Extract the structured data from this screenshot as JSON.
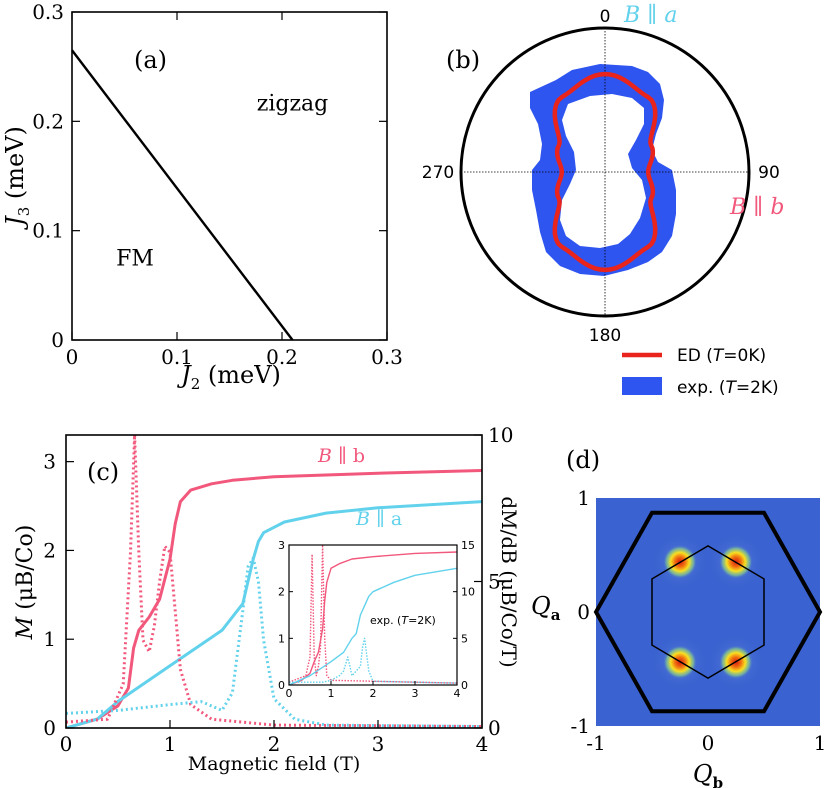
{
  "colors": {
    "pink": "#f2577c",
    "cyan": "#62d2ec",
    "red": "#e8241c",
    "blue": "#2f55f0",
    "map_bg": "#3a62d0"
  },
  "chart_data": [
    {
      "type": "line",
      "panel": "(a)",
      "title": "",
      "xlabel_var": "J",
      "xlabel_sub": "2",
      "xlabel_unit": " (meV)",
      "ylabel_var": "J",
      "ylabel_sub": "3",
      "ylabel_unit": " (meV)",
      "xlim": [
        0,
        0.3
      ],
      "ylim": [
        0,
        0.3
      ],
      "xticks": [
        "0",
        "0.1",
        "0.2",
        "0.3"
      ],
      "yticks": [
        "0",
        "0.1",
        "0.2",
        "0.3"
      ],
      "x": [
        0,
        0.21
      ],
      "y": [
        0.265,
        0
      ],
      "region_labels": [
        {
          "text": "zigzag",
          "x": 0.21,
          "y": 0.21
        },
        {
          "text": "FM",
          "x": 0.06,
          "y": 0.068
        }
      ]
    },
    {
      "type": "polar",
      "panel": "(b)",
      "angle_labels": [
        "0",
        "90",
        "180",
        "270"
      ],
      "axis_label_a": "B ∥ a",
      "axis_label_b": "B ∥ b",
      "legend": [
        {
          "label": "ED (T=0K)",
          "text_before": "ED (",
          "var": "T",
          "text_after": "=0K)"
        },
        {
          "label": "exp. (T=2K)",
          "text_before": "exp. (",
          "var": "T",
          "text_after": "=2K)"
        }
      ],
      "ed_radius_deg": [
        0,
        30,
        60,
        90,
        120,
        150,
        180
      ],
      "ed_radius_vals": [
        0.68,
        0.6,
        0.37,
        0.3,
        0.37,
        0.6,
        0.68
      ]
    },
    {
      "type": "line",
      "panel": "(c)",
      "xlabel": "Magnetic field (T)",
      "ylabel_left_var": "M",
      "ylabel_left_unit": " (μB/Co)",
      "ylabel_right": "dM/dB (μB/Co/T)",
      "xlim": [
        0,
        4
      ],
      "ylim_left": [
        0,
        3.3
      ],
      "ylim_right": [
        0,
        10
      ],
      "xticks": [
        "0",
        "1",
        "2",
        "3",
        "4"
      ],
      "yticks_left": [
        "0",
        "1",
        "2",
        "3"
      ],
      "yticks_right": [
        "0",
        "5",
        "10"
      ],
      "series": [
        {
          "name": "B ∥ b",
          "axis": "M",
          "x": [
            0,
            0.3,
            0.5,
            0.6,
            0.65,
            0.7,
            0.8,
            0.9,
            1.0,
            1.05,
            1.1,
            1.2,
            1.4,
            1.6,
            2.0,
            3.0,
            4.0
          ],
          "y": [
            0,
            0.1,
            0.25,
            0.45,
            0.9,
            1.1,
            1.25,
            1.45,
            1.9,
            2.3,
            2.55,
            2.68,
            2.75,
            2.79,
            2.83,
            2.87,
            2.9
          ]
        },
        {
          "name": "B ∥ a",
          "axis": "M",
          "x": [
            0,
            0.3,
            0.5,
            1.0,
            1.5,
            1.7,
            1.8,
            1.85,
            1.9,
            2.1,
            2.5,
            3.0,
            4.0
          ],
          "y": [
            0,
            0.1,
            0.3,
            0.7,
            1.1,
            1.4,
            1.9,
            2.1,
            2.2,
            2.32,
            2.42,
            2.48,
            2.55
          ]
        },
        {
          "name": "dM/dB B ∥ b",
          "axis": "dMdB",
          "x": [
            0,
            0.4,
            0.55,
            0.62,
            0.66,
            0.7,
            0.74,
            0.8,
            0.85,
            0.9,
            0.95,
            1.0,
            1.05,
            1.1,
            1.2,
            1.4,
            2.0,
            4.0
          ],
          "y": [
            0.2,
            0.3,
            1.5,
            6,
            10,
            6,
            3,
            2.6,
            3.5,
            5,
            6.2,
            6.0,
            4,
            2,
            0.8,
            0.3,
            0.1,
            0.05
          ]
        },
        {
          "name": "dM/dB B ∥ a",
          "axis": "dMdB",
          "x": [
            0,
            0.5,
            1.0,
            1.3,
            1.5,
            1.6,
            1.7,
            1.75,
            1.8,
            1.85,
            1.9,
            2.0,
            2.2,
            2.5,
            4.0
          ],
          "y": [
            0.5,
            0.6,
            0.8,
            0.9,
            0.6,
            1.2,
            4,
            5.5,
            5.8,
            5,
            3,
            1,
            0.3,
            0.1,
            0.05
          ]
        }
      ],
      "labels": {
        "b_var": "B",
        "b_text": " ∥ b",
        "a_var": "B",
        "a_text": " ∥ a"
      },
      "inset": {
        "xlim": [
          0,
          4
        ],
        "ylim_left": [
          0,
          3
        ],
        "ylim_right": [
          0,
          15
        ],
        "xticks": [
          "0",
          "1",
          "2",
          "3",
          "4"
        ],
        "yticks_left": [
          "0",
          "1",
          "2",
          "3"
        ],
        "yticks_right": [
          "0",
          "5",
          "10",
          "15"
        ],
        "label_before": "exp. (",
        "label_var": "T",
        "label_after": "=2K)",
        "series": [
          {
            "name": "exp B ∥ b",
            "axis": "M",
            "x": [
              0,
              0.3,
              0.5,
              0.6,
              0.7,
              0.8,
              0.85,
              0.9,
              1.0,
              1.2,
              1.5,
              2.0,
              3.0,
              4.0
            ],
            "y": [
              0,
              0.1,
              0.25,
              0.5,
              0.7,
              1.2,
              1.8,
              2.2,
              2.5,
              2.6,
              2.7,
              2.75,
              2.82,
              2.85
            ]
          },
          {
            "name": "exp B ∥ a",
            "axis": "M",
            "x": [
              0,
              0.5,
              1.0,
              1.3,
              1.5,
              1.6,
              1.7,
              1.8,
              1.9,
              2.0,
              2.5,
              3.0,
              4.0
            ],
            "y": [
              0,
              0.2,
              0.5,
              0.7,
              1.0,
              1.1,
              1.5,
              1.7,
              1.9,
              2.0,
              2.2,
              2.35,
              2.5
            ]
          },
          {
            "name": "exp dM/dB B ∥ b",
            "axis": "dMdB",
            "x": [
              0,
              0.4,
              0.5,
              0.55,
              0.6,
              0.65,
              0.7,
              0.75,
              0.8,
              0.85,
              0.9,
              1.0,
              4.0
            ],
            "y": [
              0.3,
              1,
              3,
              14,
              3,
              1,
              2,
              4,
              15,
              5,
              1,
              0.5,
              0.2
            ]
          },
          {
            "name": "exp dM/dB B ∥ a",
            "axis": "dMdB",
            "x": [
              0,
              0.8,
              1.0,
              1.2,
              1.3,
              1.4,
              1.5,
              1.7,
              1.75,
              1.8,
              1.9,
              2.0,
              4.0
            ],
            "y": [
              0.3,
              0.3,
              0.5,
              1,
              1.5,
              3,
              1,
              2,
              4,
              5,
              1.5,
              0.4,
              0.2
            ]
          }
        ]
      }
    },
    {
      "type": "heatmap",
      "panel": "(d)",
      "xlabel_var": "Q",
      "xlabel_sub": "b",
      "ylabel_var": "Q",
      "ylabel_sub": "a",
      "xlim": [
        -1,
        1
      ],
      "ylim": [
        -1,
        1
      ],
      "xticks": [
        "-1",
        "0",
        "1"
      ],
      "yticks": [
        "-1",
        "0",
        "1"
      ],
      "peaks": [
        [
          -0.25,
          0.44
        ],
        [
          0.25,
          0.44
        ],
        [
          -0.25,
          -0.44
        ],
        [
          0.25,
          -0.44
        ]
      ],
      "outer_hexagon": [
        [
          -0.5,
          0.87
        ],
        [
          0.5,
          0.87
        ],
        [
          1,
          0
        ],
        [
          0.5,
          -0.87
        ],
        [
          -0.5,
          -0.87
        ],
        [
          -1,
          0
        ]
      ],
      "inner_hexagon": [
        [
          0,
          0.58
        ],
        [
          0.5,
          0.29
        ],
        [
          0.5,
          -0.29
        ],
        [
          0,
          -0.58
        ],
        [
          -0.5,
          -0.29
        ],
        [
          -0.5,
          0.29
        ]
      ]
    }
  ]
}
